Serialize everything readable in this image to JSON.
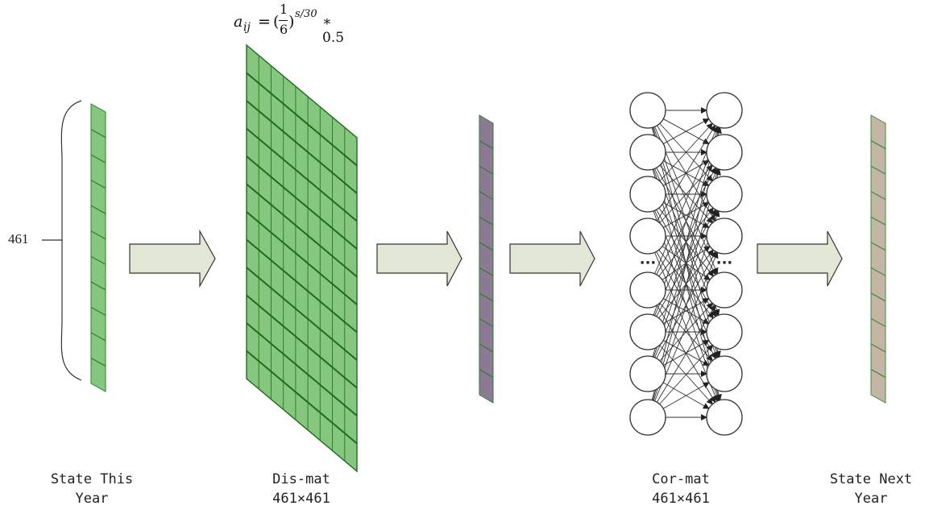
{
  "formula": {
    "lhs": "a",
    "subscript": "ij",
    "equals": "=",
    "open_paren": "(",
    "numerator": "1",
    "denominator": "6",
    "close_paren": ")",
    "exponent": "s/30",
    "tail": "∗ 0.5"
  },
  "size_label": "461",
  "captions": {
    "state_this_year": [
      "State This",
      "Year"
    ],
    "dis_mat": [
      "Dis-mat",
      "461×461"
    ],
    "cor_mat": [
      "Cor-mat",
      "461×461"
    ],
    "state_next_year": [
      "State Next",
      "Year"
    ]
  },
  "ellipsis": "···",
  "colors": {
    "green_fill": "#86c77f",
    "green_stroke": "#2e7d2e",
    "purple_fill": "#8c7a95",
    "tan_fill": "#c3b6a4",
    "arrow_fill": "#e3e8d6",
    "arrow_stroke": "#333333",
    "node_stroke": "#333333"
  },
  "network": {
    "nodes_per_column": 8
  }
}
